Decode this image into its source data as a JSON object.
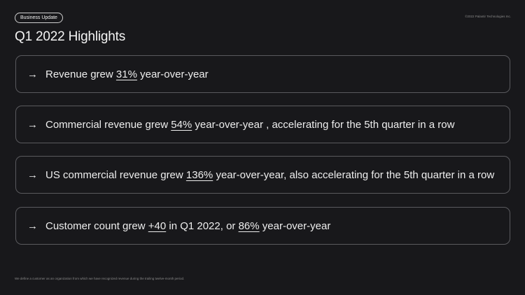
{
  "header": {
    "tag": "Business Update",
    "copyright": "©2022 Palantir Technologies Inc.",
    "title": "Q1 2022 Highlights"
  },
  "highlights": [
    {
      "arrow": "→",
      "pre": "Revenue grew ",
      "value": "31%",
      "post": " year-over-year"
    },
    {
      "arrow": "→",
      "pre": "Commercial revenue grew ",
      "value": "54%",
      "post": " year-over-year , accelerating for the 5th quarter in a row"
    },
    {
      "arrow": "→",
      "pre": "US commercial revenue grew ",
      "value": "136%",
      "post": " year-over-year, also accelerating for the 5th quarter in a row"
    },
    {
      "arrow": "→",
      "pre": "Customer count grew ",
      "value": "+40",
      "mid": " in Q1 2022, or ",
      "value2": "86%",
      "post": " year-over-year"
    }
  ],
  "footnote": "We define a customer as an organization from which we have recognized revenue during the trailing twelve-month period."
}
